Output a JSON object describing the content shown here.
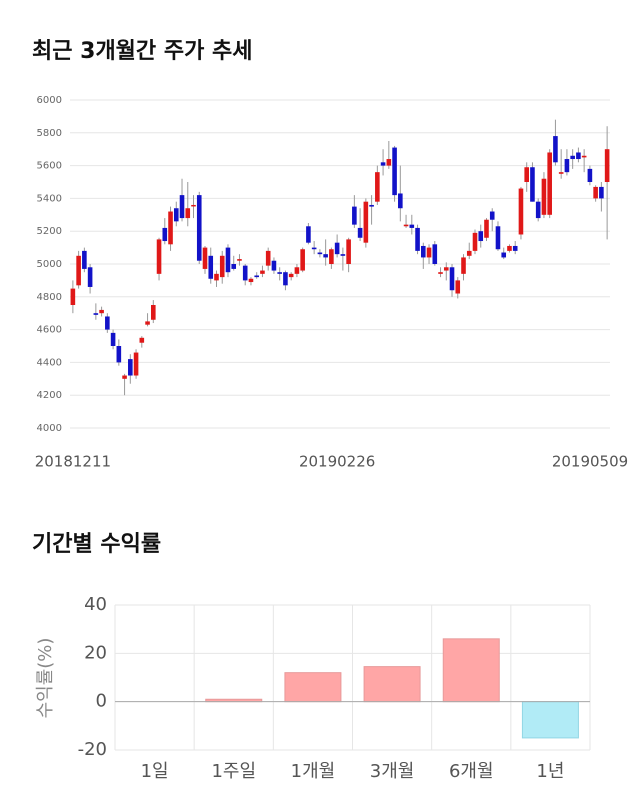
{
  "chart_data": [
    {
      "type": "candlestick",
      "title": "최근 3개월간 주가 추세",
      "categories": [
        "20181211",
        null,
        null,
        null,
        null,
        null,
        null,
        null,
        null,
        null,
        null,
        null,
        null,
        null,
        null,
        null,
        null,
        null,
        null,
        null,
        null,
        null,
        null,
        null,
        null,
        null,
        null,
        null,
        null,
        null,
        null,
        null,
        null,
        null,
        null,
        null,
        null,
        null,
        null,
        null,
        null,
        null,
        null,
        null,
        null,
        null,
        "20190226",
        null,
        null,
        null,
        null,
        null,
        null,
        null,
        null,
        null,
        null,
        null,
        null,
        null,
        null,
        null,
        null,
        null,
        null,
        null,
        null,
        null,
        null,
        null,
        null,
        null,
        null,
        null,
        null,
        null,
        null,
        null,
        null,
        null,
        null,
        null,
        null,
        null,
        null,
        null,
        null,
        null,
        null,
        null,
        null,
        null,
        null,
        "20190509"
      ],
      "open": [
        4750,
        4870,
        5080,
        4980,
        4700,
        4700,
        4680,
        4580,
        4500,
        4300,
        4420,
        4320,
        4520,
        4630,
        4660,
        4940,
        5220,
        5120,
        5340,
        5420,
        5280,
        5360,
        5420,
        4970,
        5050,
        4900,
        4920,
        5100,
        5000,
        5020,
        4990,
        4890,
        4930,
        4940,
        4990,
        5020,
        4950,
        4950,
        4920,
        4940,
        4960,
        5230,
        5100,
        5070,
        5060,
        5000,
        5130,
        5060,
        5000,
        5350,
        5220,
        5130,
        5360,
        5380,
        5620,
        5600,
        5710,
        5430,
        5230,
        5240,
        5220,
        5110,
        5040,
        5120,
        4940,
        4960,
        4980,
        4820,
        4940,
        5050,
        5080,
        5200,
        5160,
        5320,
        5230,
        5070,
        5080,
        5110,
        5180,
        5500,
        5590,
        5380,
        5300,
        5300,
        5780,
        5550,
        5640,
        5660,
        5680,
        5650,
        5580,
        5400,
        5470,
        5500
      ],
      "high": [
        4900,
        5080,
        5100,
        5000,
        4760,
        4740,
        4700,
        4600,
        4540,
        4330,
        4450,
        4480,
        4560,
        4700,
        4780,
        5160,
        5280,
        5350,
        5380,
        5520,
        5500,
        5420,
        5440,
        5110,
        5100,
        4960,
        5080,
        5120,
        5050,
        5060,
        5000,
        4920,
        4950,
        4990,
        5100,
        5040,
        4980,
        4960,
        4950,
        5000,
        5100,
        5250,
        5140,
        5090,
        5150,
        5100,
        5180,
        5100,
        5160,
        5420,
        5340,
        5400,
        5420,
        5600,
        5700,
        5750,
        5720,
        5600,
        5300,
        5300,
        5240,
        5130,
        5120,
        5140,
        4980,
        5010,
        5000,
        4920,
        5060,
        5130,
        5210,
        5240,
        5280,
        5340,
        5260,
        5100,
        5120,
        5140,
        5470,
        5620,
        5620,
        5400,
        5560,
        5700,
        5880,
        5700,
        5700,
        5700,
        5710,
        5700,
        5600,
        5480,
        5500,
        5840
      ],
      "low": [
        4700,
        4850,
        4950,
        4820,
        4660,
        4680,
        4580,
        4480,
        4380,
        4200,
        4270,
        4300,
        4490,
        4620,
        4640,
        4900,
        5120,
        5080,
        5230,
        5260,
        5230,
        5280,
        5000,
        4940,
        4880,
        4860,
        4880,
        4920,
        4960,
        4990,
        4870,
        4870,
        4910,
        4920,
        4960,
        4940,
        4900,
        4840,
        4900,
        4920,
        4950,
        5120,
        5060,
        5040,
        4990,
        4970,
        5040,
        4960,
        4950,
        5220,
        5140,
        5100,
        5240,
        5360,
        5540,
        5580,
        5380,
        5260,
        5220,
        5180,
        5060,
        4970,
        5000,
        4990,
        4920,
        4900,
        4800,
        4790,
        4900,
        5030,
        5060,
        5100,
        5140,
        5200,
        5080,
        5030,
        5070,
        5060,
        5150,
        5440,
        5380,
        5260,
        5280,
        5280,
        5600,
        5520,
        5540,
        5580,
        5620,
        5560,
        5480,
        5380,
        5320,
        5150
      ],
      "close": [
        4850,
        5050,
        4970,
        4860,
        4690,
        4720,
        4600,
        4500,
        4400,
        4320,
        4320,
        4460,
        4550,
        4650,
        4750,
        5150,
        5140,
        5320,
        5260,
        5280,
        5340,
        5360,
        5020,
        5100,
        4910,
        4940,
        5050,
        4950,
        4970,
        5030,
        4900,
        4910,
        4920,
        4960,
        5080,
        4960,
        4940,
        4870,
        4940,
        4980,
        5090,
        5130,
        5090,
        5060,
        5040,
        5090,
        5060,
        5050,
        5150,
        5240,
        5160,
        5380,
        5350,
        5560,
        5600,
        5640,
        5420,
        5340,
        5240,
        5220,
        5080,
        5040,
        5100,
        5000,
        4950,
        4980,
        4840,
        4900,
        5040,
        5080,
        5190,
        5140,
        5270,
        5270,
        5090,
        5040,
        5110,
        5080,
        5460,
        5590,
        5380,
        5280,
        5520,
        5680,
        5620,
        5560,
        5560,
        5640,
        5640,
        5660,
        5500,
        5470,
        5400,
        5700
      ],
      "up_color": "#e01818",
      "down_color": "#1212c8",
      "ylim": [
        4000,
        6000
      ],
      "yticks": [
        4000,
        4200,
        4400,
        4600,
        4800,
        5000,
        5200,
        5400,
        5600,
        5800,
        6000
      ],
      "grid": true
    },
    {
      "type": "bar",
      "title": "기간별 수익률",
      "y_label": "수익률(%)",
      "categories": [
        "1일",
        "1주일",
        "1개월",
        "3개월",
        "6개월",
        "1년"
      ],
      "values": [
        0,
        1,
        12,
        14.5,
        26,
        -15
      ],
      "colors": [
        "#ffa6a6",
        "#ffa6a6",
        "#ffa6a6",
        "#ffa6a6",
        "#ffa6a6",
        "#b1ebf6"
      ],
      "ylim": [
        -20,
        40
      ],
      "yticks": [
        -20,
        0,
        20,
        40
      ],
      "grid": true
    }
  ]
}
